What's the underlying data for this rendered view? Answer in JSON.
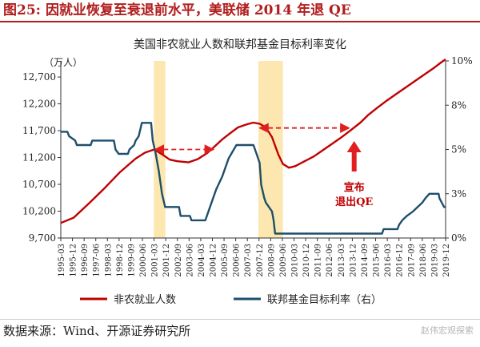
{
  "figure": {
    "number": "图25:",
    "title": "因就业恢复至衰退前水平，美联储 2014 年退 QE",
    "source": "数据来源：Wind、开源证券研究所",
    "watermark": "赵伟宏观探索"
  },
  "chart_data": {
    "type": "line",
    "title": "美国非农就业人数和联邦基金目标利率变化",
    "left_unit": "（万人）",
    "ylim_left": [
      9700,
      13000
    ],
    "yticks_left": [
      9700,
      10200,
      10700,
      11200,
      11700,
      12200,
      12700
    ],
    "ylim_right": [
      0,
      10
    ],
    "yticks_right": [
      "0%",
      "3%",
      "5%",
      "8%",
      "10%"
    ],
    "yticks_right_values": [
      0,
      2.5,
      5,
      7.5,
      10
    ],
    "x_tick_labels": [
      "1995-03",
      "1995-12",
      "1996-09",
      "1997-06",
      "1998-03",
      "1998-12",
      "1999-09",
      "2000-06",
      "2001-03",
      "2001-12",
      "2002-09",
      "2003-06",
      "2004-03",
      "2004-12",
      "2005-09",
      "2006-06",
      "2007-03",
      "2007-12",
      "2008-09",
      "2009-06",
      "2010-03",
      "2010-12",
      "2011-09",
      "2012-06",
      "2013-03",
      "2013-12",
      "2014-09",
      "2015-06",
      "2016-03",
      "2016-12",
      "2017-09",
      "2018-06",
      "2019-03",
      "2019-12"
    ],
    "x_range": [
      1995.17,
      2020.0
    ],
    "recession_bands": [
      {
        "start": 2001.17,
        "end": 2001.92
      },
      {
        "start": 2007.92,
        "end": 2009.5
      }
    ],
    "series": [
      {
        "name": "非农就业人数",
        "axis": "left",
        "color": "#c00000",
        "points": [
          [
            1995.17,
            9980
          ],
          [
            1996.0,
            10080
          ],
          [
            1997.0,
            10350
          ],
          [
            1998.0,
            10630
          ],
          [
            1999.0,
            10930
          ],
          [
            2000.0,
            11180
          ],
          [
            2000.6,
            11290
          ],
          [
            2001.2,
            11350
          ],
          [
            2001.7,
            11260
          ],
          [
            2002.2,
            11160
          ],
          [
            2002.7,
            11130
          ],
          [
            2003.4,
            11110
          ],
          [
            2004.0,
            11170
          ],
          [
            2004.6,
            11280
          ],
          [
            2005.0,
            11380
          ],
          [
            2005.6,
            11540
          ],
          [
            2006.0,
            11630
          ],
          [
            2006.6,
            11760
          ],
          [
            2007.2,
            11820
          ],
          [
            2007.6,
            11850
          ],
          [
            2008.0,
            11830
          ],
          [
            2008.4,
            11760
          ],
          [
            2008.8,
            11580
          ],
          [
            2009.2,
            11260
          ],
          [
            2009.5,
            11080
          ],
          [
            2009.9,
            11010
          ],
          [
            2010.3,
            11040
          ],
          [
            2010.9,
            11130
          ],
          [
            2011.5,
            11220
          ],
          [
            2012.0,
            11320
          ],
          [
            2012.6,
            11440
          ],
          [
            2013.2,
            11560
          ],
          [
            2013.8,
            11690
          ],
          [
            2014.5,
            11850
          ],
          [
            2015.0,
            11990
          ],
          [
            2015.6,
            12130
          ],
          [
            2016.2,
            12260
          ],
          [
            2016.8,
            12380
          ],
          [
            2017.4,
            12500
          ],
          [
            2018.0,
            12620
          ],
          [
            2018.6,
            12740
          ],
          [
            2019.2,
            12860
          ],
          [
            2019.7,
            12970
          ],
          [
            2020.0,
            13030
          ]
        ]
      },
      {
        "name": "联邦基金目标利率（右）",
        "axis": "right",
        "color": "#1f4e6b",
        "points": [
          [
            1995.17,
            6.0
          ],
          [
            1995.6,
            6.0
          ],
          [
            1995.7,
            5.75
          ],
          [
            1996.1,
            5.5
          ],
          [
            1996.2,
            5.25
          ],
          [
            1997.1,
            5.25
          ],
          [
            1997.2,
            5.5
          ],
          [
            1998.6,
            5.5
          ],
          [
            1998.7,
            5.0
          ],
          [
            1998.9,
            4.75
          ],
          [
            1999.5,
            4.75
          ],
          [
            1999.6,
            5.0
          ],
          [
            1999.9,
            5.25
          ],
          [
            2000.0,
            5.5
          ],
          [
            2000.2,
            5.75
          ],
          [
            2000.4,
            6.5
          ],
          [
            2001.0,
            6.5
          ],
          [
            2001.1,
            5.5
          ],
          [
            2001.3,
            4.75
          ],
          [
            2001.5,
            3.75
          ],
          [
            2001.7,
            2.5
          ],
          [
            2001.9,
            1.75
          ],
          [
            2002.8,
            1.75
          ],
          [
            2002.9,
            1.25
          ],
          [
            2003.5,
            1.25
          ],
          [
            2003.6,
            1.0
          ],
          [
            2004.5,
            1.0
          ],
          [
            2004.8,
            1.75
          ],
          [
            2005.2,
            2.75
          ],
          [
            2005.6,
            3.5
          ],
          [
            2006.0,
            4.5
          ],
          [
            2006.5,
            5.25
          ],
          [
            2007.6,
            5.25
          ],
          [
            2007.8,
            4.75
          ],
          [
            2008.0,
            4.25
          ],
          [
            2008.1,
            3.0
          ],
          [
            2008.3,
            2.25
          ],
          [
            2008.4,
            2.0
          ],
          [
            2008.8,
            1.5
          ],
          [
            2008.9,
            1.0
          ],
          [
            2009.0,
            0.25
          ],
          [
            2015.9,
            0.25
          ],
          [
            2016.0,
            0.5
          ],
          [
            2016.9,
            0.5
          ],
          [
            2017.0,
            0.75
          ],
          [
            2017.2,
            1.0
          ],
          [
            2017.5,
            1.25
          ],
          [
            2017.9,
            1.5
          ],
          [
            2018.2,
            1.75
          ],
          [
            2018.5,
            2.0
          ],
          [
            2018.7,
            2.25
          ],
          [
            2018.95,
            2.5
          ],
          [
            2019.55,
            2.5
          ],
          [
            2019.6,
            2.25
          ],
          [
            2019.75,
            2.0
          ],
          [
            2019.9,
            1.75
          ],
          [
            2020.0,
            1.75
          ]
        ]
      }
    ],
    "annotations": {
      "arrow_2001": {
        "x_start": 2001.17,
        "x_end": 2005.0,
        "value": 11350
      },
      "arrow_2008": {
        "x_start": 2007.92,
        "x_end": 2013.75,
        "value": 11750
      },
      "qe_exit_line1": "宣布",
      "qe_exit_line2": "退出QE",
      "qe_exit_x": 2014.1
    },
    "legend": {
      "placement": "bottom",
      "items": [
        "非农就业人数",
        "联邦基金目标利率（右）"
      ]
    },
    "grid": false
  }
}
